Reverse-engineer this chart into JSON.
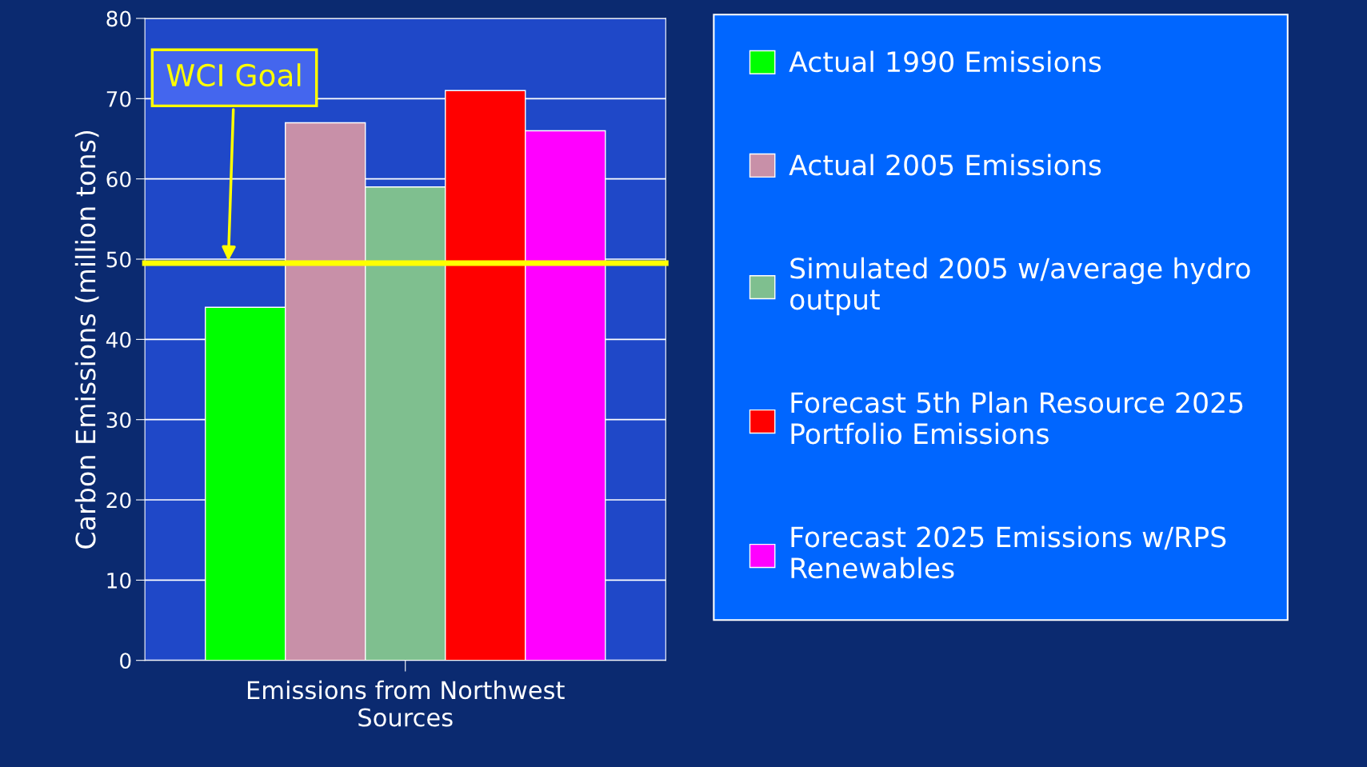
{
  "chart_data": {
    "type": "bar",
    "ylabel": "Carbon Emissions (million tons)",
    "categories": [
      "Emissions from Northwest\nSources"
    ],
    "series": [
      {
        "name": "Actual 1990 Emissions",
        "color": "#00ff00",
        "values": [
          44
        ]
      },
      {
        "name": "Actual 2005 Emissions",
        "color": "#c890a8",
        "values": [
          67
        ]
      },
      {
        "name": "Simulated 2005 w/average hydro\noutput",
        "color": "#7fbf8f",
        "values": [
          59
        ]
      },
      {
        "name": "Forecast 5th Plan Resource 2025\nPortfolio Emissions",
        "color": "#ff0000",
        "values": [
          71
        ]
      },
      {
        "name": "Forecast 2025 Emissions w/RPS\nRenewables",
        "color": "#ff00ff",
        "values": [
          66
        ]
      }
    ],
    "ylim": [
      0,
      80
    ],
    "yticks": [
      0,
      10,
      20,
      30,
      40,
      50,
      60,
      70,
      80
    ],
    "ref_lines": [
      {
        "axis": "y",
        "value": 49.5,
        "label": "WCI Goal",
        "color": "#ffff00"
      }
    ],
    "grid": "y",
    "legend": "right"
  }
}
